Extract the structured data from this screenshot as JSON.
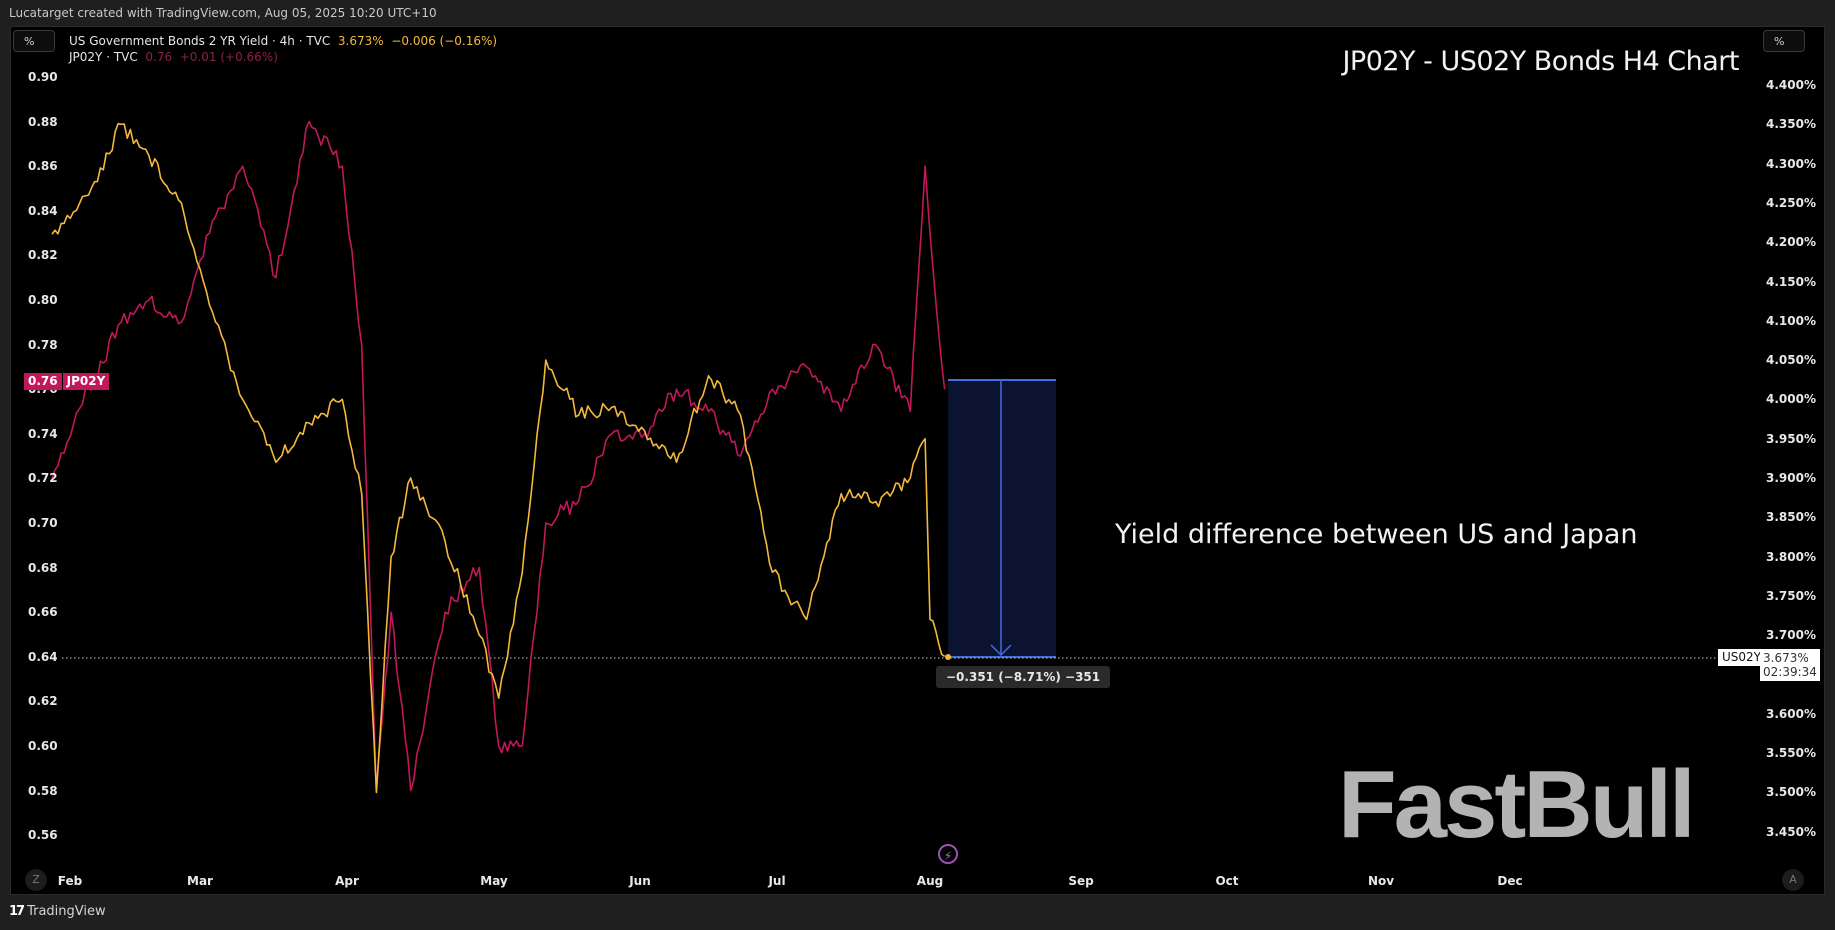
{
  "header": {
    "credit": "Lucatarget created with TradingView.com, Aug 05, 2025 10:20 UTC+10"
  },
  "scale_buttons": {
    "left": "%",
    "right": "%"
  },
  "legend": {
    "us": {
      "name": "US Government Bonds 2 YR Yield · 4h · TVC",
      "value": "3.673%",
      "change": "−0.006 (−0.16%)"
    },
    "jp": {
      "name": "JP02Y · TVC",
      "value": "0.76",
      "change": "+0.01 (+0.66%)"
    }
  },
  "chart_title": "JP02Y - US02Y Bonds H4 Chart",
  "annotation": "Yield difference between US and Japan",
  "watermark": "FastBull",
  "price_tags": {
    "jp_value": "0.76",
    "jp_label": "JP02Y",
    "us_label": "US02Y",
    "us_value": "3.673%",
    "us_countdown": "02:39:34"
  },
  "measure": {
    "label": "−0.351 (−8.71%) −351"
  },
  "buttons": {
    "zoom": "Z",
    "auto": "A",
    "bolt_icon": "⚡"
  },
  "footer": {
    "logo_mark": "17",
    "logo_text": "TradingView"
  },
  "colors": {
    "us": "#f5b93a",
    "jp": "#c2185b",
    "measure": "#3d6fe0",
    "measure_fill": "#0b1330"
  },
  "chart_data": {
    "type": "line",
    "title": "JP02Y - US02Y Bonds H4 Chart",
    "xlabel": "",
    "ylabel_left": "JP02Y yield (%)",
    "ylabel_right": "US02Y yield (%)",
    "x_ticks": [
      "Feb",
      "Mar",
      "Apr",
      "May",
      "Jun",
      "Jul",
      "Aug",
      "Sep",
      "Oct",
      "Nov",
      "Dec"
    ],
    "left_axis": {
      "ticks": [
        "0.90",
        "0.88",
        "0.86",
        "0.84",
        "0.82",
        "0.80",
        "0.78",
        "0.76",
        "0.74",
        "0.72",
        "0.70",
        "0.68",
        "0.66",
        "0.64",
        "0.62",
        "0.60",
        "0.58",
        "0.56"
      ],
      "ylim": [
        0.55,
        0.91
      ]
    },
    "right_axis": {
      "ticks": [
        "4.400%",
        "4.350%",
        "4.300%",
        "4.250%",
        "4.200%",
        "4.150%",
        "4.100%",
        "4.050%",
        "4.000%",
        "3.950%",
        "3.900%",
        "3.850%",
        "3.800%",
        "3.750%",
        "3.700%",
        "3.600%",
        "3.550%",
        "3.500%",
        "3.450%"
      ],
      "ylim": [
        3.43,
        4.42
      ]
    },
    "grid": false,
    "legend_position": "top-left",
    "series": [
      {
        "name": "US Government Bonds 2 YR Yield (US02Y)",
        "axis": "right",
        "color": "#f5b93a",
        "x": [
          "Jan-28",
          "Feb-05",
          "Feb-12",
          "Feb-18",
          "Feb-25",
          "Mar-03",
          "Mar-10",
          "Mar-17",
          "Mar-24",
          "Mar-31",
          "Apr-04",
          "Apr-07",
          "Apr-10",
          "Apr-14",
          "Apr-21",
          "Apr-28",
          "May-02",
          "May-07",
          "May-12",
          "May-19",
          "May-26",
          "Jun-02",
          "Jun-09",
          "Jun-16",
          "Jun-23",
          "Jun-30",
          "Jul-07",
          "Jul-14",
          "Jul-21",
          "Jul-28",
          "Jul-31",
          "Aug-01",
          "Aug-04"
        ],
        "values": [
          4.21,
          4.26,
          4.35,
          4.31,
          4.25,
          4.12,
          4.0,
          3.92,
          3.97,
          4.0,
          3.88,
          3.5,
          3.8,
          3.9,
          3.82,
          3.7,
          3.62,
          3.78,
          4.05,
          3.98,
          3.99,
          3.96,
          3.92,
          4.03,
          3.98,
          3.78,
          3.72,
          3.88,
          3.87,
          3.9,
          3.95,
          3.72,
          3.673
        ]
      },
      {
        "name": "JP02Y",
        "axis": "left",
        "color": "#c2185b",
        "x": [
          "Jan-28",
          "Feb-05",
          "Feb-12",
          "Feb-18",
          "Feb-25",
          "Mar-03",
          "Mar-10",
          "Mar-17",
          "Mar-24",
          "Mar-31",
          "Apr-04",
          "Apr-07",
          "Apr-10",
          "Apr-14",
          "Apr-21",
          "Apr-28",
          "May-02",
          "May-07",
          "May-12",
          "May-19",
          "May-26",
          "Jun-02",
          "Jun-09",
          "Jun-16",
          "Jun-23",
          "Jun-30",
          "Jul-07",
          "Jul-14",
          "Jul-21",
          "Jul-28",
          "Jul-31",
          "Aug-01",
          "Aug-04"
        ],
        "values": [
          0.72,
          0.76,
          0.79,
          0.8,
          0.79,
          0.83,
          0.86,
          0.81,
          0.88,
          0.86,
          0.78,
          0.58,
          0.66,
          0.58,
          0.66,
          0.68,
          0.6,
          0.6,
          0.7,
          0.71,
          0.74,
          0.74,
          0.76,
          0.75,
          0.73,
          0.76,
          0.77,
          0.75,
          0.78,
          0.75,
          0.86,
          0.83,
          0.76
        ]
      }
    ],
    "annotations": [
      {
        "type": "measure",
        "from": 4.024,
        "to": 3.673,
        "text": "−0.351 (−8.71%) −351"
      },
      {
        "type": "text",
        "text": "Yield difference between US and Japan"
      }
    ]
  }
}
